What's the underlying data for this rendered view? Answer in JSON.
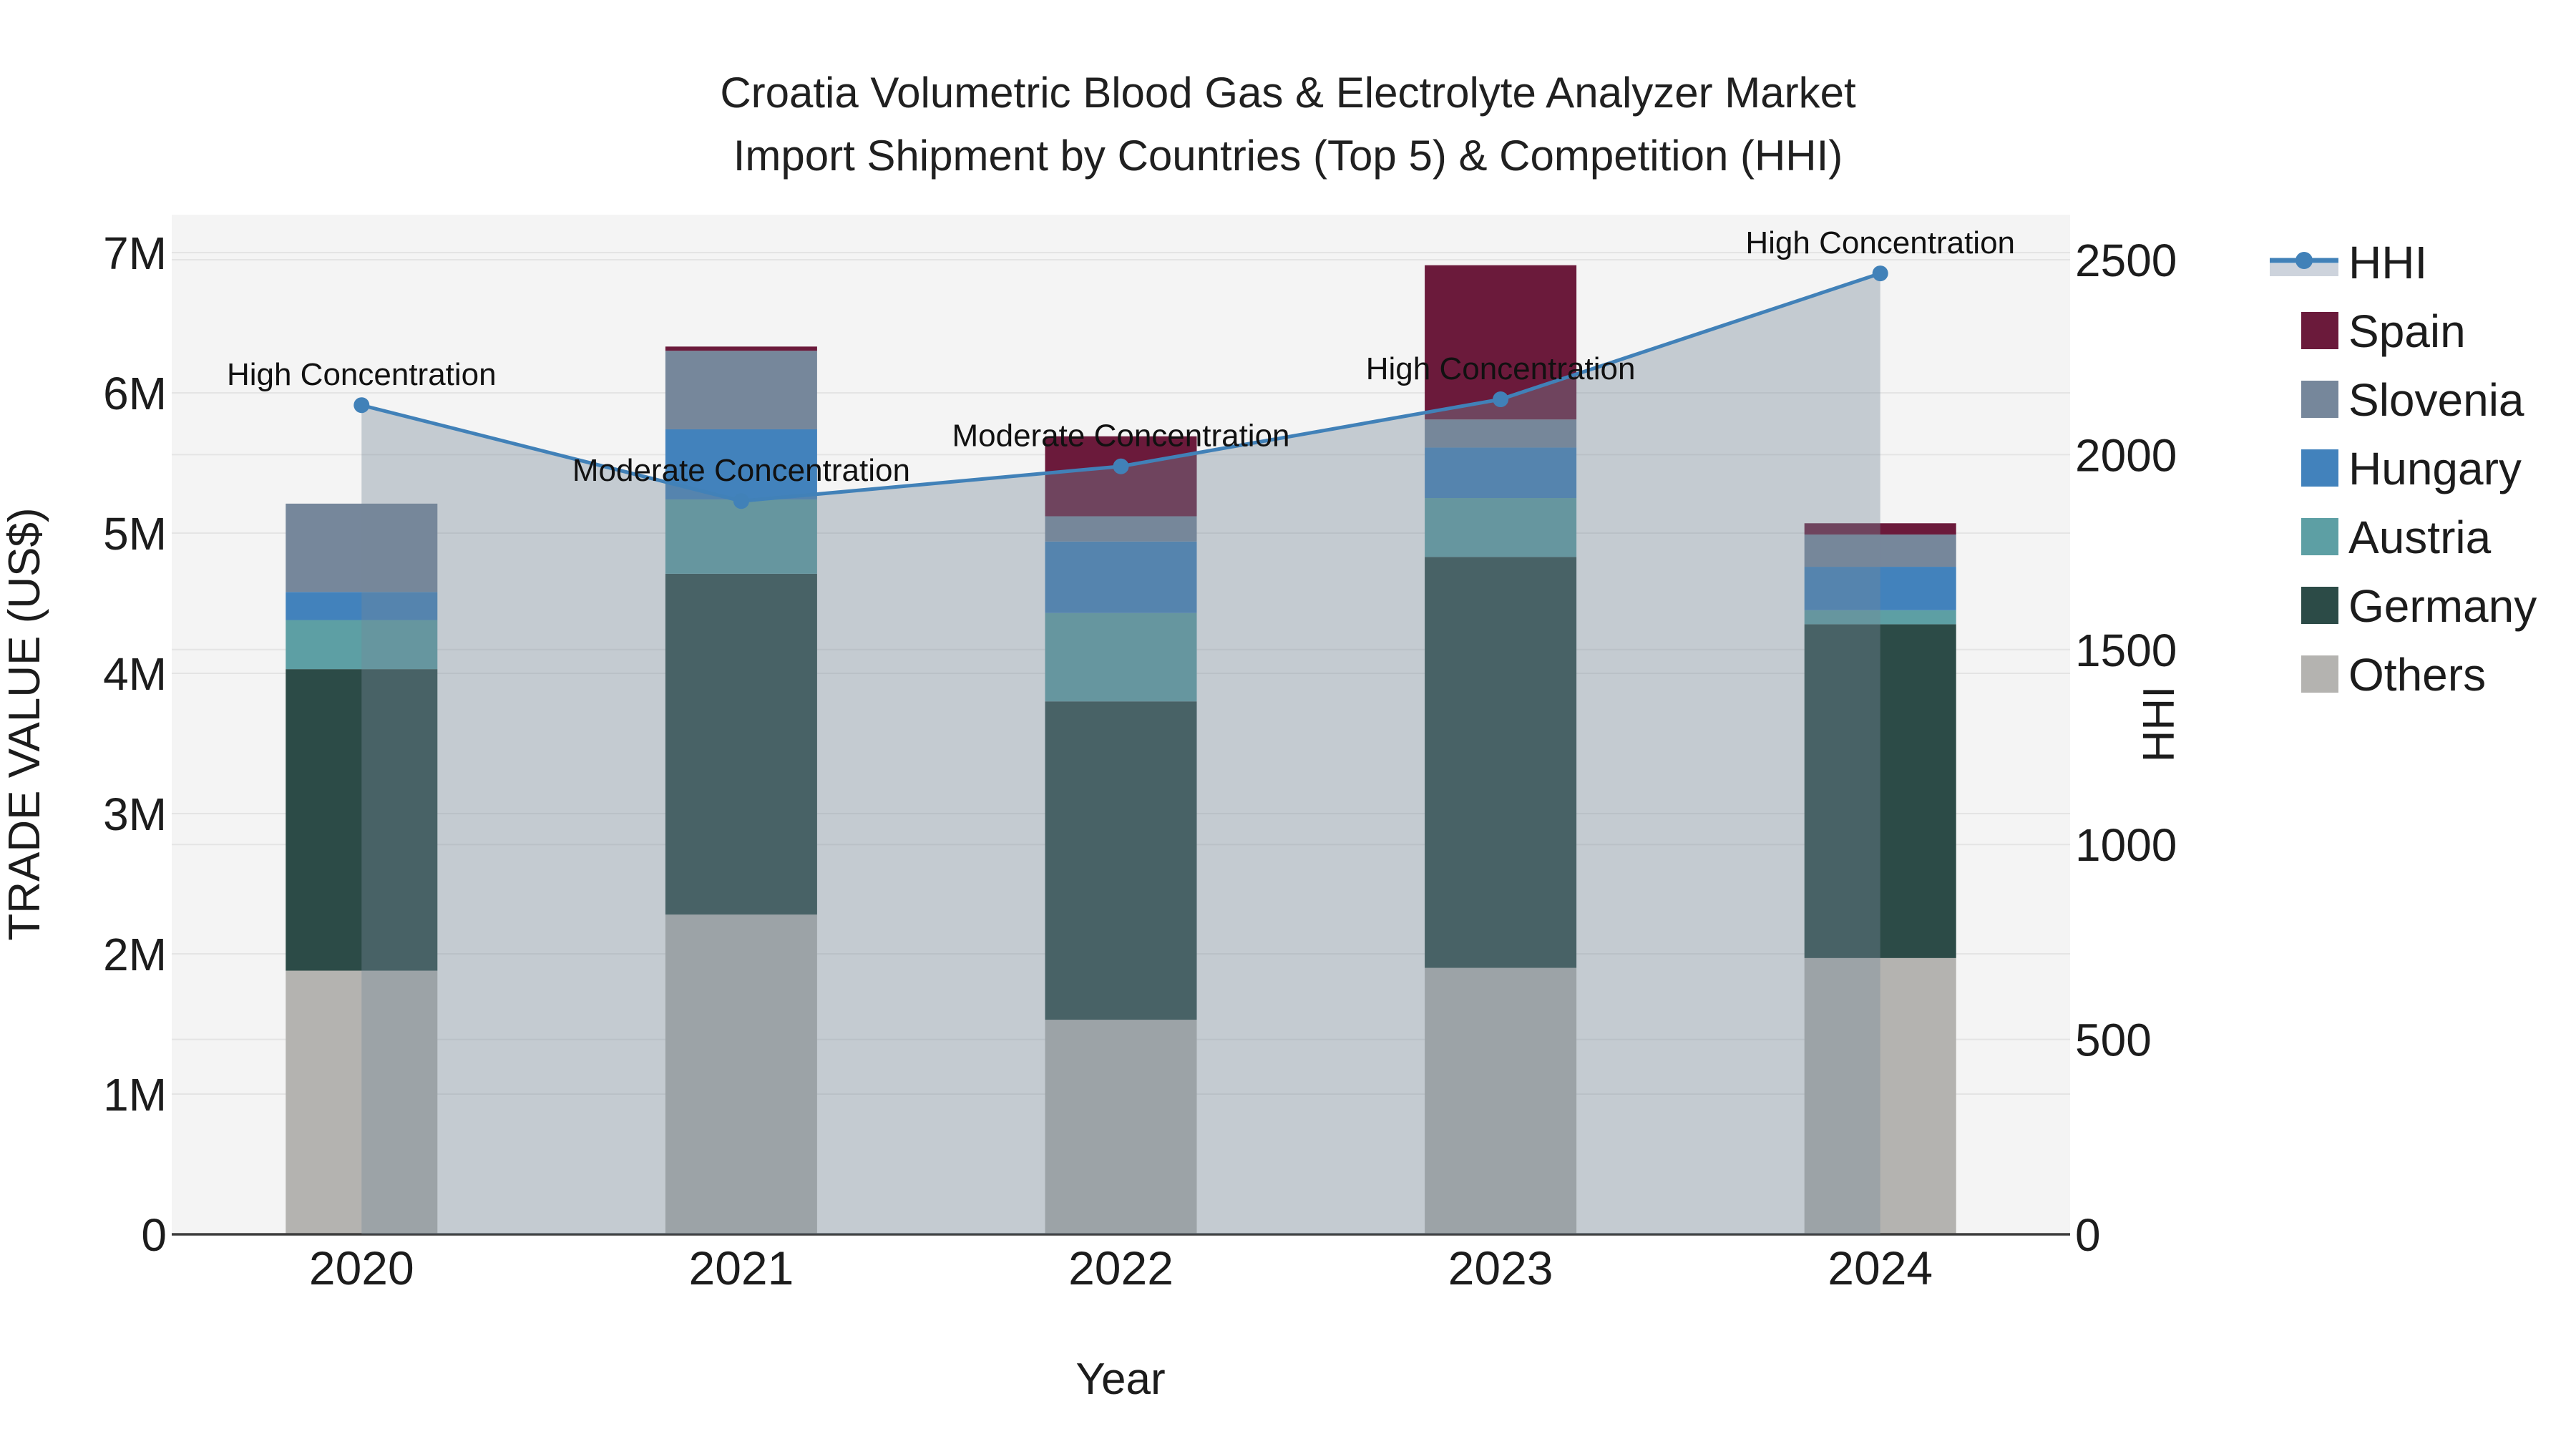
{
  "title": {
    "line1": "Croatia Volumetric Blood Gas & Electrolyte Analyzer Market",
    "line2": "Import Shipment by Countries (Top 5) & Competition (HHI)"
  },
  "axes": {
    "x": {
      "title": "Year",
      "ticks": [
        "2020",
        "2021",
        "2022",
        "2023",
        "2024"
      ]
    },
    "y_left": {
      "title": "TRADE VALUE (US$)",
      "ticks": [
        "0",
        "1M",
        "2M",
        "3M",
        "4M",
        "5M",
        "6M",
        "7M"
      ],
      "tick_values_millions": [
        0,
        1,
        2,
        3,
        4,
        5,
        6,
        7
      ],
      "range_millions": [
        0,
        7.27
      ]
    },
    "y_right": {
      "title": "HHI",
      "ticks": [
        "0",
        "500",
        "1000",
        "1500",
        "2000",
        "2500"
      ],
      "tick_values": [
        0,
        500,
        1000,
        1500,
        2000,
        2500
      ],
      "range": [
        0,
        2615
      ]
    }
  },
  "colors": {
    "plot_bg": "#f4f4f4",
    "grid": "#e4e4e4",
    "axis_line": "#3d3d3d",
    "hhi_line": "#4181b8",
    "hhi_fill": "rgba(119,136,153,0.38)",
    "hhi_legend_band": "#cdd3dc",
    "spain": "#6b1a3b",
    "slovenia": "#76879b",
    "hungary": "#4282bc",
    "austria": "#5d9fa4",
    "germany": "#2c4b47",
    "others": "#b4b3b0"
  },
  "legend": {
    "entries": [
      {
        "label": "HHI",
        "type": "line",
        "color": "#4181b8"
      },
      {
        "label": "Spain",
        "type": "swatch",
        "color": "#6b1a3b"
      },
      {
        "label": "Slovenia",
        "type": "swatch",
        "color": "#76879b"
      },
      {
        "label": "Hungary",
        "type": "swatch",
        "color": "#4282bc"
      },
      {
        "label": "Austria",
        "type": "swatch",
        "color": "#5d9fa4"
      },
      {
        "label": "Germany",
        "type": "swatch",
        "color": "#2c4b47"
      },
      {
        "label": "Others",
        "type": "swatch",
        "color": "#b4b3b0"
      }
    ]
  },
  "chart_data": [
    {
      "type": "bar",
      "stacked": true,
      "title": "Croatia Volumetric Blood Gas & Electrolyte Analyzer Market Import Shipment by Countries (Top 5) & Competition (HHI)",
      "xlabel": "Year",
      "ylabel": "TRADE VALUE (US$)",
      "unit": "millions US$",
      "ylim": [
        0,
        7.27
      ],
      "grid": true,
      "categories": [
        2020,
        2021,
        2022,
        2023,
        2024
      ],
      "series": [
        {
          "name": "Others",
          "color": "#b4b3b0",
          "values": [
            1.88,
            2.28,
            1.53,
            1.9,
            1.97
          ]
        },
        {
          "name": "Germany",
          "color": "#2c4b47",
          "values": [
            2.15,
            2.43,
            2.27,
            2.93,
            2.38
          ]
        },
        {
          "name": "Austria",
          "color": "#5d9fa4",
          "values": [
            0.35,
            0.53,
            0.63,
            0.42,
            0.1
          ]
        },
        {
          "name": "Hungary",
          "color": "#4282bc",
          "values": [
            0.2,
            0.5,
            0.51,
            0.36,
            0.31
          ]
        },
        {
          "name": "Slovenia",
          "color": "#76879b",
          "values": [
            0.63,
            0.56,
            0.18,
            0.2,
            0.23
          ]
        },
        {
          "name": "Spain",
          "color": "#6b1a3b",
          "values": [
            0.0,
            0.03,
            0.57,
            1.1,
            0.08
          ]
        }
      ],
      "totals_millions": [
        5.21,
        6.33,
        5.69,
        6.91,
        5.07
      ],
      "legend_position": "right"
    },
    {
      "type": "line",
      "name": "HHI",
      "ylabel": "HHI",
      "ylim": [
        0,
        2615
      ],
      "x": [
        2020,
        2021,
        2022,
        2023,
        2024
      ],
      "values": [
        2127,
        1881,
        1970,
        2142,
        2465
      ],
      "fill": "tozeroy",
      "markers": true,
      "point_labels": [
        "High Concentration",
        "Moderate Concentration",
        "Moderate Concentration",
        "High Concentration",
        "High Concentration"
      ]
    }
  ]
}
